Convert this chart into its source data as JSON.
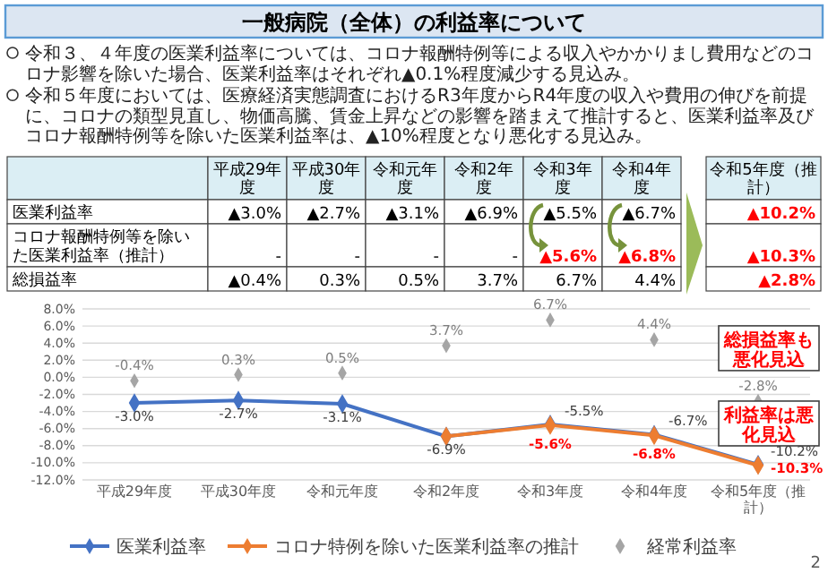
{
  "chart_data": [
    {
      "type": "other",
      "title": "一般病院（全体）の利益率について",
      "annotations": [
        "令和３、４年度の医業利益率については、コロナ報酬特例等による収入やかかりまし費用などのコロナ影響を除いた場合、医業利益率はそれぞれ▲0.1%程度減少する見込み。",
        "令和５年度においては、医療経済実態調査におけるR3年度からR4年度の収入や費用の伸びを前提に、コロナの類型見直し、物価高騰、賃金上昇などの影響を踏まえて推計すると、医業利益率及びコロナ報酬特例等を除いた医業利益率は、▲10%程度となり悪化する見込み。"
      ],
      "categories": [
        "平成29年度",
        "平成30年度",
        "令和元年度",
        "令和2年度",
        "令和3年度",
        "令和4年度",
        "令和5年度（推計）"
      ],
      "y_categories": [
        "医業利益率",
        "コロナ報酬特例等を除いた医業利益率（推計）",
        "総損益率"
      ],
      "cell_labels": [
        [
          "▲3.0%",
          "▲2.7%",
          "▲3.1%",
          "▲6.9%",
          "▲5.5%",
          "▲6.7%",
          "▲10.2%"
        ],
        [
          "-",
          "-",
          "-",
          "-",
          "▲5.6%",
          "▲6.8%",
          "▲10.3%"
        ],
        [
          "▲0.4%",
          "0.3%",
          "0.5%",
          "3.7%",
          "6.7%",
          "4.4%",
          "▲2.8%"
        ]
      ]
    },
    {
      "type": "line",
      "categories": [
        "平成29年度",
        "平成30年度",
        "令和元年度",
        "令和2年度",
        "令和3年度",
        "令和4年度",
        "令和5年度（推計）"
      ],
      "series": [
        {
          "name": "医業利益率",
          "color": "#4472c4",
          "values": [
            -3.0,
            -2.7,
            -3.1,
            -6.9,
            -5.5,
            -6.7,
            -10.2
          ],
          "value_labels": [
            "-3.0%",
            "-2.7%",
            "-3.1%",
            "-6.9%",
            "-5.5%",
            "-6.7%",
            "-10.2%"
          ]
        },
        {
          "name": "コロナ特例を除いた医業利益率の推計",
          "color": "#ed7d31",
          "values": [
            null,
            null,
            null,
            -6.9,
            -5.6,
            -6.8,
            -10.3
          ],
          "value_labels": [
            null,
            null,
            null,
            null,
            "-5.6%",
            "-6.8%",
            "-10.3%"
          ]
        },
        {
          "name": "経常利益率",
          "color": "#a5a5a5",
          "type": "scatter",
          "values": [
            -0.4,
            0.3,
            0.5,
            3.7,
            6.7,
            4.4,
            -2.8
          ],
          "value_labels": [
            "-0.4%",
            "0.3%",
            "0.5%",
            "3.7%",
            "6.7%",
            "4.4%",
            "-2.8%"
          ]
        }
      ],
      "ylim": [
        -12,
        8
      ],
      "yticks": [
        {
          "value": -12,
          "label": "-12.0%"
        },
        {
          "value": -10,
          "label": "-10.0%"
        },
        {
          "value": -8,
          "label": "-8.0%"
        },
        {
          "value": -6,
          "label": "-6.0%"
        },
        {
          "value": -4,
          "label": "-4.0%"
        },
        {
          "value": -2,
          "label": "-2.0%"
        },
        {
          "value": 0,
          "label": "0.0%"
        },
        {
          "value": 2,
          "label": "2.0%"
        },
        {
          "value": 4,
          "label": "4.0%"
        },
        {
          "value": 6,
          "label": "6.0%"
        },
        {
          "value": 8,
          "label": "8.0%"
        }
      ],
      "grid": "y",
      "legend": "bottom",
      "marker": "diamond",
      "line_style": "solid",
      "annotations": [
        "総損益率も悪化見込",
        "利益率は悪化見込",
        "2"
      ]
    }
  ]
}
